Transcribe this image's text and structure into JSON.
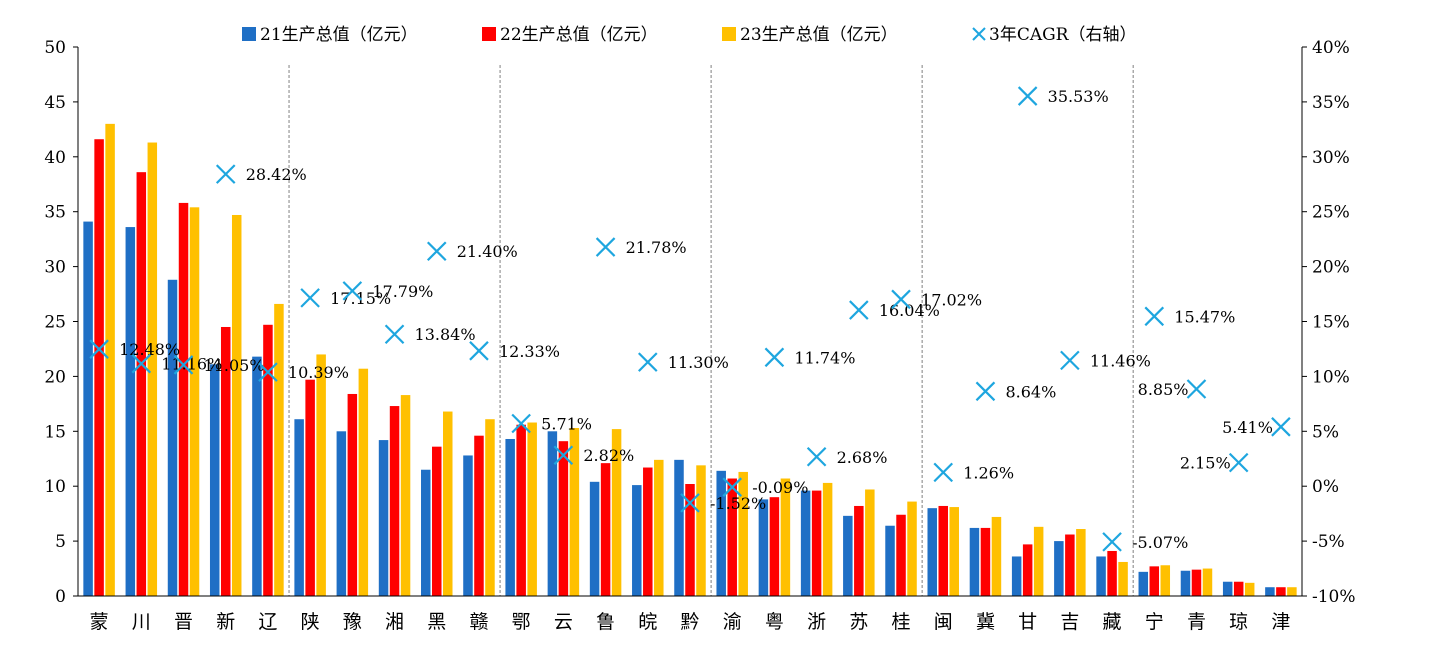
{
  "chart_data": {
    "type": "bar",
    "categories": [
      "蒙",
      "川",
      "晋",
      "新",
      "辽",
      "陕",
      "豫",
      "湘",
      "黑",
      "赣",
      "鄂",
      "云",
      "鲁",
      "皖",
      "黔",
      "渝",
      "粤",
      "浙",
      "苏",
      "桂",
      "闽",
      "冀",
      "甘",
      "吉",
      "藏",
      "宁",
      "青",
      "琼",
      "津"
    ],
    "series": [
      {
        "name": "21生产总值（亿元）",
        "axis": "left",
        "color": "#1F6FC5",
        "values": [
          34.1,
          33.6,
          28.8,
          21.1,
          21.8,
          16.1,
          15.0,
          14.2,
          11.5,
          12.8,
          14.3,
          15.0,
          10.4,
          10.1,
          12.4,
          11.4,
          8.8,
          9.6,
          7.3,
          6.4,
          8.0,
          6.2,
          3.6,
          5.0,
          3.6,
          2.2,
          2.3,
          1.3,
          0.8
        ]
      },
      {
        "name": "22生产总值（亿元）",
        "axis": "left",
        "color": "#FF0000",
        "values": [
          41.6,
          38.6,
          35.8,
          24.5,
          24.7,
          19.7,
          18.4,
          17.3,
          13.6,
          14.6,
          15.6,
          14.1,
          12.1,
          11.7,
          10.2,
          10.7,
          9.0,
          9.6,
          8.2,
          7.4,
          8.2,
          6.2,
          4.7,
          5.6,
          4.1,
          2.7,
          2.4,
          1.3,
          0.8
        ]
      },
      {
        "name": "23生产总值（亿元）",
        "axis": "left",
        "color": "#FFC000",
        "values": [
          43.0,
          41.3,
          35.4,
          34.7,
          26.6,
          22.0,
          20.7,
          18.3,
          16.8,
          16.1,
          15.8,
          15.3,
          15.2,
          12.4,
          11.9,
          11.3,
          10.7,
          10.3,
          9.7,
          8.6,
          8.1,
          7.2,
          6.3,
          6.1,
          3.1,
          2.8,
          2.5,
          1.2,
          0.8
        ]
      },
      {
        "name": "3年CAGR（右轴）",
        "axis": "right",
        "type": "scatter",
        "color": "#1EA6DF",
        "values": [
          12.48,
          11.16,
          11.05,
          28.42,
          10.39,
          17.15,
          17.79,
          13.84,
          21.4,
          12.33,
          5.71,
          2.82,
          21.78,
          11.3,
          -1.52,
          -0.09,
          11.74,
          2.68,
          16.04,
          17.02,
          1.26,
          8.64,
          35.53,
          11.46,
          -5.07,
          15.47,
          8.85,
          2.15,
          5.41
        ],
        "labels": [
          "12.48%",
          "11.16%",
          "11.05%",
          "28.42%",
          "10.39%",
          "17.15%",
          "17.79%",
          "13.84%",
          "21.40%",
          "12.33%",
          "5.71%",
          "2.82%",
          "21.78%",
          "11.30%",
          "-1.52%",
          "-0.09%",
          "11.74%",
          "2.68%",
          "16.04%",
          "17.02%",
          "1.26%",
          "8.64%",
          "35.53%",
          "11.46%",
          "-5.07%",
          "15.47%",
          "8.85%",
          "2.15%",
          "5.41%"
        ]
      }
    ],
    "ylim": [
      0,
      50
    ],
    "yticks": [
      "0",
      "5",
      "10",
      "15",
      "20",
      "25",
      "30",
      "35",
      "40",
      "45",
      "50"
    ],
    "y2lim": [
      -10,
      40
    ],
    "y2ticks": [
      "-10%",
      "-5%",
      "0%",
      "5%",
      "10%",
      "15%",
      "20%",
      "25%",
      "30%",
      "35%",
      "40%"
    ],
    "legend_position": "top",
    "group_separators_after": [
      "辽",
      "赣",
      "黔",
      "桂",
      "藏"
    ],
    "grid": false
  }
}
